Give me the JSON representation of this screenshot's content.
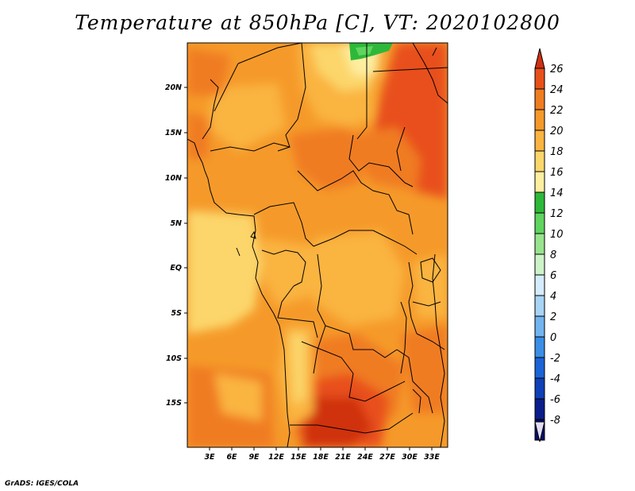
{
  "title": "Temperature at 850hPa [C], VT: 2020102800",
  "credit": "GrADS: IGES/COLA",
  "map": {
    "lon_labels": [
      "3E",
      "6E",
      "9E",
      "12E",
      "15E",
      "18E",
      "21E",
      "24E",
      "27E",
      "30E",
      "33E"
    ],
    "lat_labels": [
      "20N",
      "15N",
      "10N",
      "5N",
      "EQ",
      "5S",
      "10S",
      "15S"
    ]
  },
  "colorbar": {
    "labels": [
      "26",
      "24",
      "22",
      "20",
      "18",
      "16",
      "14",
      "12",
      "10",
      "8",
      "6",
      "4",
      "2",
      "0",
      "-2",
      "-4",
      "-6",
      "-8"
    ],
    "colors": [
      "#d03010",
      "#e8501a",
      "#f07c20",
      "#f59a2a",
      "#fab440",
      "#fcd66a",
      "#fdeea0",
      "#2eb83a",
      "#5fd45e",
      "#98e48e",
      "#cdf2c8",
      "#d4ecfb",
      "#a8d4f5",
      "#72b4ef",
      "#3a8ee6",
      "#1b64d6",
      "#1040b8",
      "#0a1d8c",
      "#06106a"
    ],
    "over_color": "#d03010",
    "under_color": "#e0ddf4"
  }
}
